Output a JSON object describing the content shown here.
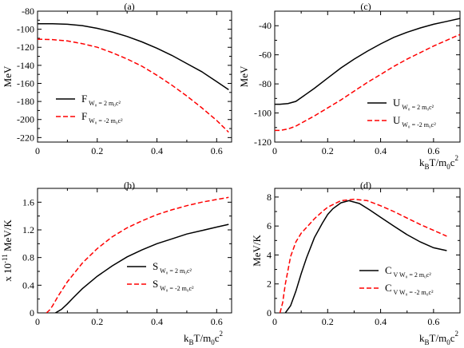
{
  "chart_data": [
    {
      "type": "line",
      "panel_label": "(a)",
      "ylabel": "MeV",
      "xlabel": "",
      "xlim": [
        0,
        0.65
      ],
      "ylim": [
        -225,
        -80
      ],
      "xticks": [
        "0",
        "0.2",
        "0.4",
        "0.6"
      ],
      "yticks": [
        "-80",
        "-100",
        "-120",
        "-140",
        "-160",
        "-180",
        "-200",
        "-220"
      ],
      "legend_position": "lower-left",
      "series": [
        {
          "legend_main": "F",
          "legend_sub": "W₀ = 2 m₀c²",
          "color": "#000000",
          "dash": "solid",
          "x": [
            0,
            0.05,
            0.1,
            0.15,
            0.2,
            0.25,
            0.3,
            0.35,
            0.4,
            0.45,
            0.5,
            0.55,
            0.6,
            0.64
          ],
          "y": [
            -94,
            -94,
            -94.5,
            -96,
            -99,
            -103,
            -108,
            -114,
            -121,
            -129,
            -138,
            -147,
            -158,
            -167
          ]
        },
        {
          "legend_main": "F",
          "legend_sub": "W₀ = -2 m₀c²",
          "color": "#ff0000",
          "dash": "dashed",
          "x": [
            0,
            0.05,
            0.1,
            0.15,
            0.2,
            0.25,
            0.3,
            0.35,
            0.4,
            0.45,
            0.5,
            0.55,
            0.6,
            0.64
          ],
          "y": [
            -111,
            -111.5,
            -113,
            -116,
            -120,
            -126,
            -133,
            -141,
            -151,
            -162,
            -174,
            -187,
            -201,
            -214
          ]
        }
      ]
    },
    {
      "type": "line",
      "panel_label": "(c)",
      "ylabel": "MeV",
      "xlabel": "kBT/m0c2",
      "xlim": [
        0,
        0.7
      ],
      "ylim": [
        -120,
        -30
      ],
      "xticks": [
        "0",
        "0.2",
        "0.4",
        "0.6"
      ],
      "yticks": [
        "-40",
        "-60",
        "-80",
        "-100",
        "-120"
      ],
      "legend_position": "lower-right",
      "series": [
        {
          "legend_main": "U",
          "legend_sub": "W₀ = 2 m₀c²",
          "color": "#000000",
          "dash": "solid",
          "x": [
            0,
            0.02,
            0.05,
            0.08,
            0.1,
            0.15,
            0.2,
            0.25,
            0.3,
            0.35,
            0.4,
            0.45,
            0.5,
            0.55,
            0.6,
            0.65,
            0.7
          ],
          "y": [
            -94,
            -94,
            -93.5,
            -92,
            -89.5,
            -83,
            -76,
            -69,
            -63,
            -57.5,
            -52.5,
            -48,
            -44.5,
            -41.5,
            -39,
            -37,
            -35
          ]
        },
        {
          "legend_main": "U",
          "legend_sub": "W₀ = -2 m₀c²",
          "color": "#ff0000",
          "dash": "dashed",
          "x": [
            0,
            0.02,
            0.05,
            0.08,
            0.1,
            0.15,
            0.2,
            0.25,
            0.3,
            0.35,
            0.4,
            0.45,
            0.5,
            0.55,
            0.6,
            0.65,
            0.7
          ],
          "y": [
            -112,
            -112,
            -111,
            -109,
            -107,
            -102,
            -96.5,
            -91,
            -85,
            -79,
            -73.5,
            -68,
            -63,
            -58.5,
            -54,
            -50,
            -46
          ]
        }
      ]
    },
    {
      "type": "line",
      "panel_label": "(b)",
      "ylabel": "x 10-11  MeV/K",
      "xlabel": "kBT/m0c2",
      "xlim": [
        0,
        0.65
      ],
      "ylim": [
        0,
        1.8
      ],
      "xticks": [
        "0",
        "0.2",
        "0.4",
        "0.6"
      ],
      "yticks": [
        "0",
        "0.4",
        "0.8",
        "1.2",
        "1.6"
      ],
      "legend_position": "lower-right",
      "series": [
        {
          "legend_main": "S",
          "legend_sub": "W₀ = 2 m₀c²",
          "color": "#000000",
          "dash": "solid",
          "x": [
            0.06,
            0.08,
            0.1,
            0.12,
            0.15,
            0.2,
            0.25,
            0.3,
            0.35,
            0.4,
            0.45,
            0.5,
            0.55,
            0.6,
            0.64
          ],
          "y": [
            0,
            0.05,
            0.13,
            0.22,
            0.35,
            0.53,
            0.68,
            0.81,
            0.91,
            1.0,
            1.07,
            1.14,
            1.19,
            1.24,
            1.28
          ]
        },
        {
          "legend_main": "S",
          "legend_sub": "W₀ = -2 m₀c²",
          "color": "#ff0000",
          "dash": "dashed",
          "x": [
            0.03,
            0.04,
            0.05,
            0.07,
            0.1,
            0.15,
            0.2,
            0.25,
            0.3,
            0.35,
            0.4,
            0.45,
            0.5,
            0.55,
            0.6,
            0.64
          ],
          "y": [
            0,
            0.04,
            0.1,
            0.25,
            0.45,
            0.72,
            0.93,
            1.1,
            1.23,
            1.33,
            1.42,
            1.49,
            1.55,
            1.6,
            1.64,
            1.67
          ]
        }
      ]
    },
    {
      "type": "line",
      "panel_label": "(d)",
      "ylabel": "MeV/K",
      "xlabel": "kBT/m0c2",
      "xlim": [
        0,
        0.7
      ],
      "ylim": [
        0,
        8.6
      ],
      "xticks": [
        "0",
        "0.2",
        "0.4",
        "0.6"
      ],
      "yticks": [
        "0",
        "2",
        "4",
        "6",
        "8"
      ],
      "legend_position": "lower-right",
      "series": [
        {
          "legend_main": "C",
          "legend_sub": "V W₀ = 2 m₀c²",
          "color": "#000000",
          "dash": "solid",
          "x": [
            0.04,
            0.06,
            0.08,
            0.1,
            0.12,
            0.15,
            0.18,
            0.2,
            0.22,
            0.25,
            0.28,
            0.32,
            0.36,
            0.4,
            0.45,
            0.5,
            0.55,
            0.6,
            0.65
          ],
          "y": [
            0,
            0.5,
            1.5,
            2.7,
            3.8,
            5.2,
            6.2,
            6.8,
            7.2,
            7.6,
            7.75,
            7.55,
            7.1,
            6.6,
            6.0,
            5.4,
            4.9,
            4.5,
            4.3
          ]
        },
        {
          "legend_main": "C",
          "legend_sub": "V W₀ = -2 m₀c²",
          "color": "#ff0000",
          "dash": "dashed",
          "x": [
            0.02,
            0.03,
            0.04,
            0.06,
            0.08,
            0.1,
            0.12,
            0.15,
            0.18,
            0.2,
            0.25,
            0.3,
            0.35,
            0.4,
            0.45,
            0.5,
            0.55,
            0.6,
            0.65
          ],
          "y": [
            0,
            0.7,
            2.0,
            3.9,
            4.9,
            5.5,
            5.9,
            6.5,
            7.0,
            7.3,
            7.75,
            7.85,
            7.75,
            7.4,
            7.0,
            6.55,
            6.1,
            5.7,
            5.3
          ]
        }
      ]
    }
  ]
}
